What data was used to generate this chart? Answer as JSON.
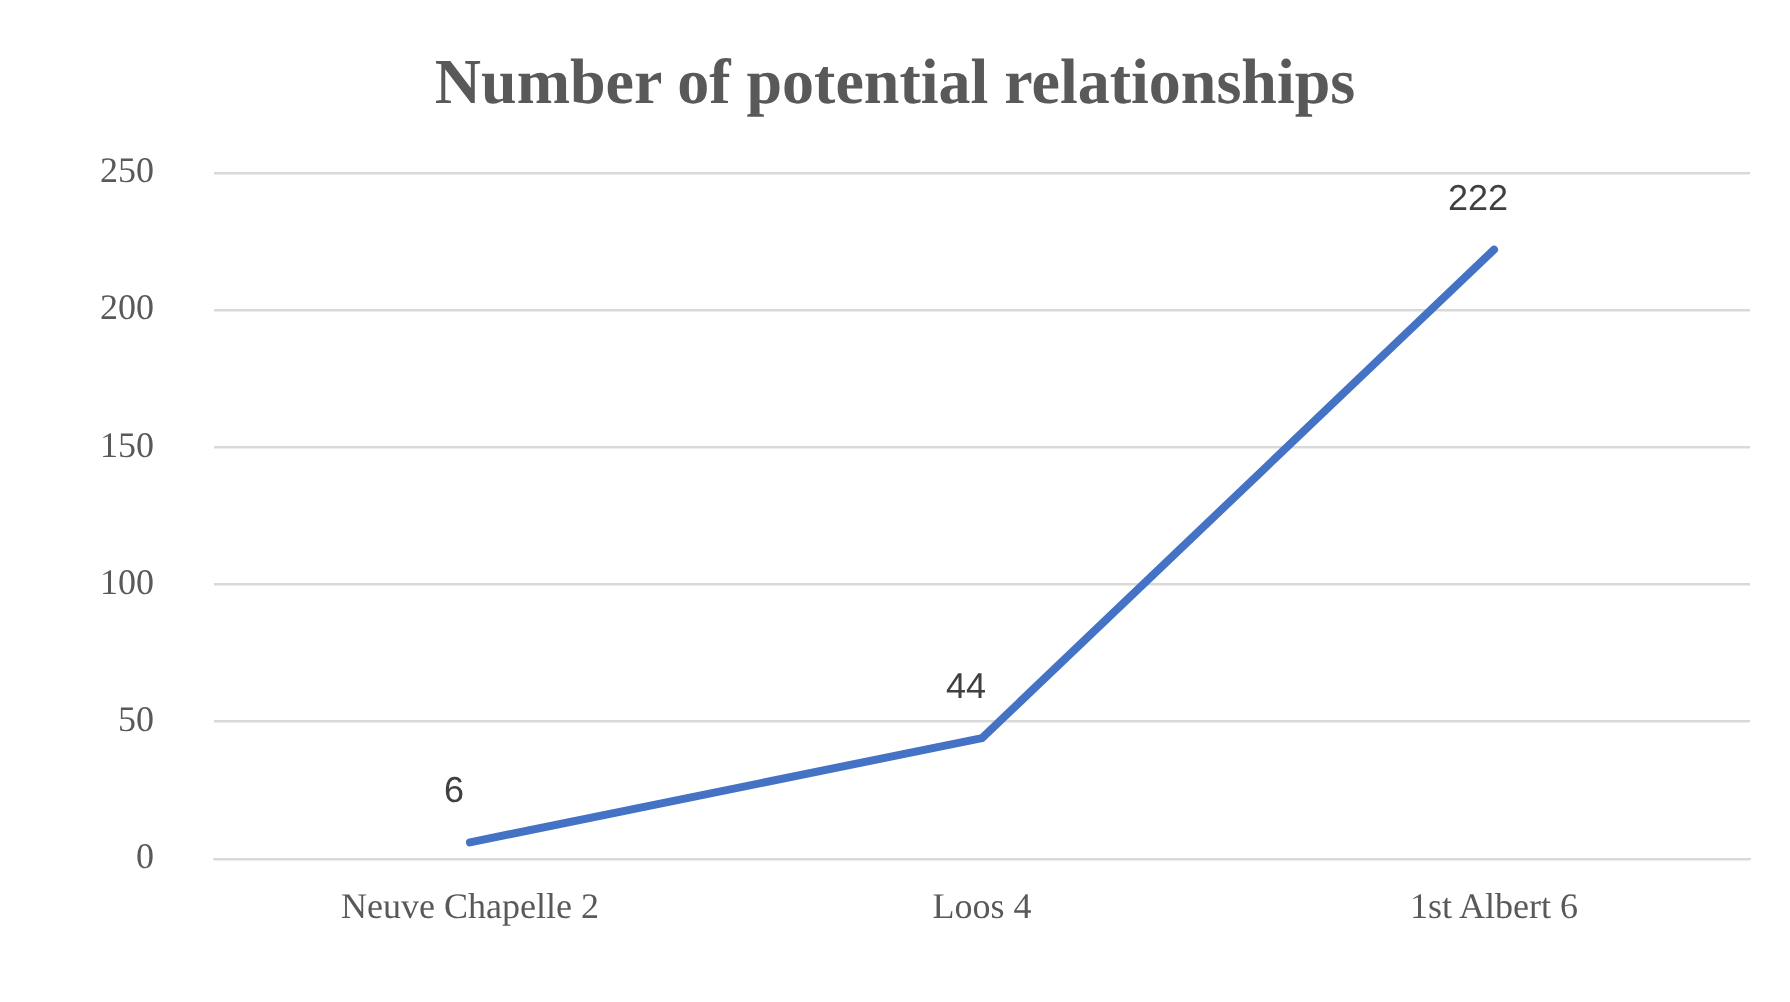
{
  "chart_data": {
    "type": "line",
    "title": "Number of potential relationships",
    "categories": [
      "Neuve Chapelle 2",
      "Loos 4",
      "1st Albert 6"
    ],
    "series": [
      {
        "color": "#4472c4",
        "values": [
          6,
          44,
          222
        ]
      }
    ],
    "ylim": [
      0,
      250
    ],
    "yticks": [
      0,
      50,
      100,
      150,
      200,
      250
    ],
    "grid": "y",
    "legend": false,
    "marker": "none",
    "line_style": "solid",
    "data_labels": true
  }
}
